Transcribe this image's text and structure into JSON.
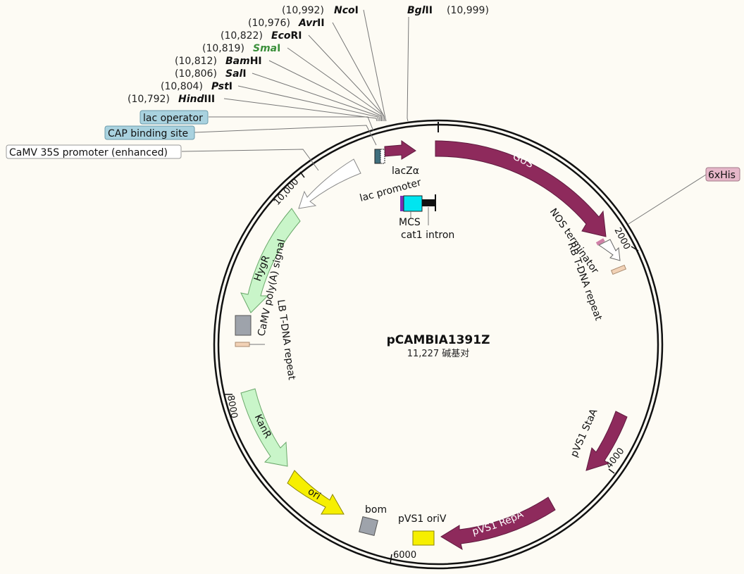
{
  "plasmid": {
    "name": "pCAMBIA1391Z",
    "size_text": "11,227 碱基对"
  },
  "colors": {
    "background": "#fdfbf4",
    "purple": "#8e2a5c",
    "hyg_green": "#c9f5c9",
    "kan_green": "#c9f5c9",
    "ori_yellow": "#f6ef00",
    "gray": "#9ea3ab",
    "teal_tag": "#a9d2df",
    "pink_tag": "#e6b7c9",
    "sma_green": "#3a8f3a"
  },
  "enzymes": [
    {
      "pos": "(10,992)",
      "name_italic": "Nco",
      "name_plain": "I"
    },
    {
      "pos": "(10,976)",
      "name_italic": "Avr",
      "name_plain": "II"
    },
    {
      "pos": "(10,822)",
      "name_italic": "Eco",
      "name_plain": "RI"
    },
    {
      "pos": "(10,819)",
      "name_italic": "Sma",
      "name_plain": "I"
    },
    {
      "pos": "(10,812)",
      "name_italic": "Bam",
      "name_plain": "HI"
    },
    {
      "pos": "(10,806)",
      "name_italic": "Sal",
      "name_plain": "I"
    },
    {
      "pos": "(10,804)",
      "name_italic": "Pst",
      "name_plain": "I"
    },
    {
      "pos": "(10,792)",
      "name_italic": "Hind",
      "name_plain": "III"
    }
  ],
  "enzyme_right": {
    "name_italic": "Bgl",
    "name_plain": "II",
    "pos": "(10,999)"
  },
  "tags": {
    "lac_operator": "lac operator",
    "cap_binding": "CAP binding site",
    "camv35s": "CaMV 35S promoter (enhanced)",
    "his": "6xHis"
  },
  "features": {
    "gus": "GUS",
    "nos_terminator": "NOS terminator",
    "rb_repeat": "RB T-DNA repeat",
    "lacz": "lacZα",
    "lac_promoter": "lac promoter",
    "mcs": "MCS",
    "cat1": "cat1 intron",
    "hygr": "HygR",
    "camv_polya": "CaMV poly(A) signal",
    "lb_repeat": "LB T-DNA repeat",
    "kanr": "KanR",
    "ori": "ori",
    "bom": "bom",
    "pvs1_oriv": "pVS1 oriV",
    "pvs1_repa": "pVS1 RepA",
    "pvs1_staa": "pVS1 StaA"
  },
  "ticks": {
    "t2000": "2000",
    "t4000": "4000",
    "t6000": "6000",
    "t8000": "8000",
    "t10000": "10,000"
  }
}
